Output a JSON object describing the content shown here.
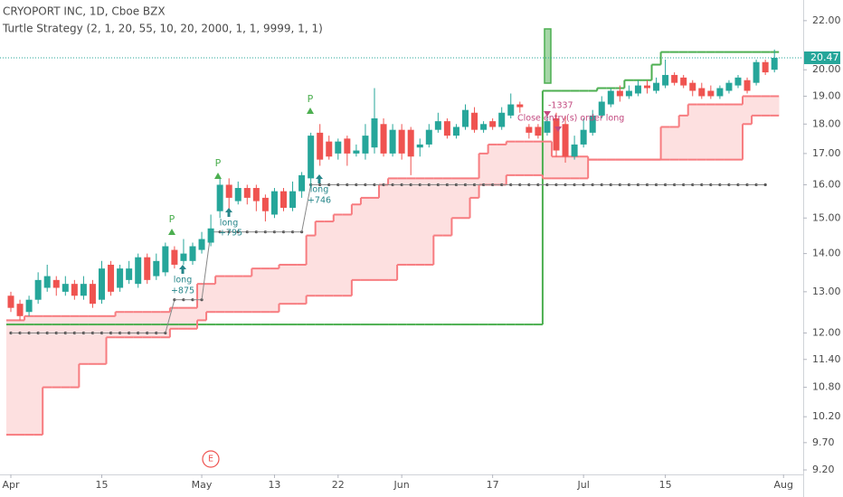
{
  "chart_data": {
    "type": "candlestick",
    "title": "CRYOPORT INC, 1D, Cboe BZX",
    "subtitle": "Turtle Strategy (2, 1, 20, 55, 10, 20, 2000, 1, 1, 9999, 1, 1)",
    "categories": [
      "Apr",
      null,
      null,
      null,
      null,
      null,
      null,
      null,
      null,
      null,
      "15",
      null,
      null,
      null,
      null,
      null,
      null,
      null,
      null,
      null,
      null,
      "May",
      null,
      null,
      null,
      null,
      null,
      null,
      null,
      "13",
      null,
      null,
      null,
      null,
      null,
      null,
      "22",
      null,
      null,
      null,
      null,
      null,
      null,
      "Jun",
      null,
      null,
      null,
      null,
      null,
      null,
      null,
      null,
      null,
      "17",
      null,
      null,
      null,
      null,
      null,
      null,
      null,
      null,
      null,
      "Jul",
      null,
      null,
      null,
      null,
      null,
      null,
      null,
      null,
      "15",
      null,
      null,
      null,
      null,
      null,
      null,
      null,
      null,
      null,
      null,
      null,
      null,
      "Aug"
    ],
    "open": [
      12.9,
      12.7,
      12.5,
      12.8,
      13.1,
      13.3,
      13.0,
      13.2,
      12.9,
      13.2,
      12.8,
      13.7,
      13.1,
      13.3,
      13.2,
      13.9,
      13.4,
      13.5,
      14.1,
      13.8,
      13.8,
      14.1,
      14.3,
      15.2,
      16.0,
      15.5,
      15.9,
      15.9,
      15.6,
      15.1,
      15.8,
      15.3,
      15.8,
      16.2,
      17.7,
      17.4,
      17.0,
      17.5,
      17.0,
      17.0,
      17.2,
      18.0,
      17.0,
      17.8,
      17.8,
      17.2,
      17.3,
      17.8,
      18.1,
      17.6,
      17.9,
      18.4,
      17.8,
      18.1,
      17.9,
      18.3,
      18.7,
      17.9,
      17.9,
      17.7,
      18.2,
      18.0,
      16.9,
      17.3,
      17.7,
      18.3,
      18.7,
      19.2,
      19.0,
      19.1,
      19.4,
      19.2,
      19.4,
      19.8,
      19.7,
      19.5,
      19.3,
      19.2,
      19.0,
      19.2,
      19.4,
      19.6,
      19.5,
      20.3,
      20.0,
      null
    ],
    "high": [
      13.0,
      12.8,
      12.9,
      13.5,
      13.7,
      13.4,
      13.4,
      13.3,
      13.4,
      13.3,
      13.8,
      13.8,
      13.7,
      13.8,
      14.0,
      14.0,
      14.0,
      14.3,
      14.2,
      14.4,
      14.3,
      14.6,
      15.1,
      16.2,
      16.2,
      16.1,
      16.0,
      16.0,
      15.7,
      15.9,
      15.9,
      16.1,
      16.4,
      17.7,
      18.0,
      17.6,
      17.5,
      17.6,
      17.3,
      18.0,
      19.3,
      18.2,
      18.0,
      18.0,
      17.9,
      17.5,
      18.0,
      18.4,
      18.2,
      18.0,
      18.7,
      18.6,
      18.1,
      18.2,
      18.6,
      19.1,
      18.8,
      18.0,
      18.0,
      18.3,
      18.4,
      18.3,
      17.6,
      18.2,
      18.5,
      19.0,
      19.3,
      19.4,
      19.4,
      19.6,
      19.6,
      19.7,
      20.4,
      19.9,
      19.8,
      19.6,
      19.5,
      19.4,
      19.4,
      19.6,
      19.8,
      19.7,
      20.4,
      20.4,
      20.8,
      null
    ],
    "low": [
      12.5,
      12.3,
      12.4,
      12.7,
      13.0,
      12.9,
      12.9,
      12.8,
      12.8,
      12.6,
      12.7,
      12.9,
      13.0,
      13.2,
      13.1,
      13.2,
      13.3,
      13.4,
      13.6,
      13.7,
      13.7,
      14.0,
      14.2,
      15.0,
      15.2,
      15.4,
      15.4,
      15.2,
      14.9,
      15.0,
      15.2,
      15.2,
      15.6,
      15.9,
      16.6,
      16.8,
      16.8,
      16.6,
      16.9,
      16.8,
      17.0,
      16.9,
      16.9,
      16.8,
      16.3,
      16.9,
      17.2,
      17.7,
      17.5,
      17.5,
      17.8,
      17.7,
      17.7,
      17.8,
      17.8,
      18.2,
      18.4,
      17.5,
      17.5,
      17.6,
      16.9,
      16.7,
      16.8,
      17.2,
      17.6,
      18.2,
      18.6,
      18.8,
      18.9,
      19.0,
      19.1,
      19.1,
      19.3,
      19.4,
      19.3,
      19.0,
      18.9,
      18.9,
      18.9,
      19.1,
      19.3,
      19.1,
      19.4,
      19.8,
      19.9,
      null
    ],
    "close": [
      12.6,
      12.4,
      12.8,
      13.3,
      13.4,
      13.1,
      13.2,
      12.9,
      13.2,
      12.7,
      13.6,
      13.0,
      13.6,
      13.6,
      13.9,
      13.3,
      13.8,
      14.2,
      13.7,
      14.0,
      14.2,
      14.4,
      14.7,
      16.0,
      15.6,
      15.9,
      15.6,
      15.5,
      15.2,
      15.8,
      15.3,
      15.8,
      16.3,
      17.6,
      16.8,
      16.9,
      17.4,
      17.0,
      17.1,
      17.6,
      18.2,
      17.0,
      17.8,
      17.0,
      16.9,
      17.3,
      17.8,
      18.1,
      17.6,
      17.9,
      18.5,
      17.8,
      18.0,
      17.9,
      18.4,
      18.7,
      18.6,
      17.7,
      17.6,
      18.1,
      17.1,
      16.9,
      17.3,
      17.8,
      18.3,
      18.8,
      19.2,
      19.0,
      19.2,
      19.4,
      19.3,
      19.5,
      19.8,
      19.5,
      19.4,
      19.2,
      19.0,
      19.0,
      19.3,
      19.5,
      19.7,
      19.2,
      20.3,
      19.9,
      20.47,
      null
    ],
    "up_color": "#26a69a",
    "down_color": "#ef5350",
    "lines": [
      {
        "color": "#4caf50",
        "style": "solid",
        "values": [
          12.2,
          12.2,
          12.2,
          12.2,
          12.2,
          12.2,
          12.2,
          12.2,
          12.2,
          12.2,
          12.2,
          12.2,
          12.2,
          12.2,
          12.2,
          12.2,
          12.2,
          12.2,
          12.2,
          12.2,
          12.2,
          12.2,
          12.2,
          12.2,
          12.2,
          12.2,
          12.2,
          12.2,
          12.2,
          12.2,
          12.2,
          12.2,
          12.2,
          12.2,
          12.2,
          12.2,
          12.2,
          12.2,
          12.2,
          12.2,
          12.2,
          12.2,
          12.2,
          12.2,
          12.2,
          12.2,
          12.2,
          12.2,
          12.2,
          12.2,
          12.2,
          12.2,
          12.2,
          12.2,
          12.2,
          12.2,
          12.2,
          12.2,
          12.2,
          19.2,
          19.2,
          19.2,
          19.2,
          19.2,
          19.2,
          19.3,
          19.3,
          19.3,
          19.6,
          19.6,
          19.6,
          20.2,
          20.7,
          20.7,
          20.7,
          20.7,
          20.7,
          20.7,
          20.7,
          20.7,
          20.7,
          20.7,
          20.7,
          20.7,
          20.7,
          null
        ]
      },
      {
        "color": "#f77c80",
        "style": "solid",
        "values": [
          12.3,
          12.3,
          12.4,
          12.4,
          12.4,
          12.4,
          12.4,
          12.4,
          12.4,
          12.4,
          12.4,
          12.4,
          12.5,
          12.5,
          12.5,
          12.5,
          12.5,
          12.5,
          12.6,
          12.6,
          12.6,
          13.2,
          13.2,
          13.4,
          13.4,
          13.4,
          13.4,
          13.6,
          13.6,
          13.6,
          13.7,
          13.7,
          13.7,
          14.5,
          14.9,
          14.9,
          15.1,
          15.1,
          15.4,
          15.6,
          15.6,
          16.0,
          16.2,
          16.2,
          16.2,
          16.2,
          16.2,
          16.2,
          16.2,
          16.2,
          16.2,
          16.2,
          17.0,
          17.3,
          17.3,
          17.4,
          17.4,
          17.4,
          17.4,
          17.4,
          16.9,
          16.9,
          16.9,
          16.9,
          16.8,
          16.8,
          16.8,
          16.8,
          16.8,
          16.8,
          16.8,
          16.8,
          17.9,
          17.9,
          18.3,
          18.7,
          18.7,
          18.7,
          18.7,
          18.7,
          18.7,
          19.0,
          19.0,
          19.0,
          19.0,
          null
        ]
      },
      {
        "color": "#f77c80",
        "style": "solid",
        "values": [
          9.85,
          9.85,
          9.85,
          9.85,
          10.8,
          10.8,
          10.8,
          10.8,
          11.3,
          11.3,
          11.3,
          11.9,
          11.9,
          11.9,
          11.9,
          11.9,
          11.9,
          11.9,
          12.1,
          12.1,
          12.1,
          12.3,
          12.5,
          12.5,
          12.5,
          12.5,
          12.5,
          12.5,
          12.5,
          12.5,
          12.7,
          12.7,
          12.7,
          12.9,
          12.9,
          12.9,
          12.9,
          12.9,
          13.3,
          13.3,
          13.3,
          13.3,
          13.3,
          13.7,
          13.7,
          13.7,
          13.7,
          14.5,
          14.5,
          15.0,
          15.0,
          15.6,
          16.0,
          16.0,
          16.0,
          16.3,
          16.3,
          16.3,
          16.3,
          16.2,
          16.2,
          16.2,
          16.2,
          16.2,
          16.8,
          16.8,
          16.8,
          16.8,
          16.8,
          16.8,
          16.8,
          16.8,
          16.8,
          16.8,
          16.8,
          16.8,
          16.8,
          16.8,
          16.8,
          16.8,
          16.8,
          18.0,
          18.3,
          18.3,
          18.3,
          null
        ]
      },
      {
        "color": "#555555",
        "style": "dotted",
        "values": [
          12.0,
          12.0,
          12.0,
          12.0,
          12.0,
          12.0,
          12.0,
          12.0,
          12.0,
          12.0,
          12.0,
          12.0,
          12.0,
          12.0,
          12.0,
          12.0,
          12.0,
          12.0,
          12.8,
          12.8,
          12.8,
          12.8,
          14.6,
          14.6,
          14.6,
          14.6,
          14.6,
          14.6,
          14.6,
          14.6,
          14.6,
          14.6,
          14.6,
          16.0,
          16.0,
          16.0,
          16.0,
          16.0,
          16.0,
          16.0,
          16.0,
          16.0,
          16.0,
          16.0,
          16.0,
          16.0,
          16.0,
          16.0,
          16.0,
          16.0,
          16.0,
          16.0,
          16.0,
          16.0,
          16.0,
          16.0,
          16.0,
          16.0,
          16.0,
          16.0,
          16.0,
          16.0,
          16.0,
          16.0,
          16.0,
          16.0,
          16.0,
          16.0,
          16.0,
          16.0,
          16.0,
          16.0,
          16.0,
          16.0,
          16.0,
          16.0,
          16.0,
          16.0,
          16.0,
          16.0,
          16.0,
          16.0,
          16.0,
          16.0,
          null,
          null
        ]
      }
    ],
    "band_color": "#fde0e0",
    "annotations": [
      "P",
      "P",
      "P",
      "long",
      "+875",
      "long",
      "+795",
      "long",
      "+746",
      "Close entry(s) order long",
      "-1337",
      "E"
    ],
    "log_scale": true,
    "ylim": [
      9.12,
      22.9
    ],
    "yticks": [
      {
        "value": 9.2,
        "label": "9.20"
      },
      {
        "value": 9.7,
        "label": "9.70"
      },
      {
        "value": 10.2,
        "label": "10.20"
      },
      {
        "value": 10.8,
        "label": "10.80"
      },
      {
        "value": 11.4,
        "label": "11.40"
      },
      {
        "value": 12,
        "label": "12.00"
      },
      {
        "value": 13,
        "label": "13.00"
      },
      {
        "value": 14,
        "label": "14.00"
      },
      {
        "value": 15,
        "label": "15.00"
      },
      {
        "value": 16,
        "label": "16.00"
      },
      {
        "value": 17,
        "label": "17.00"
      },
      {
        "value": 18,
        "label": "18.00"
      },
      {
        "value": 19,
        "label": "19.00"
      },
      {
        "value": 20,
        "label": "20.00"
      },
      {
        "value": 22,
        "label": "22.00"
      }
    ],
    "price_line_color": "#26a69a"
  }
}
